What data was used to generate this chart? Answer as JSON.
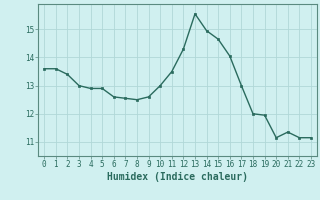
{
  "x": [
    0,
    1,
    2,
    3,
    4,
    5,
    6,
    7,
    8,
    9,
    10,
    11,
    12,
    13,
    14,
    15,
    16,
    17,
    18,
    19,
    20,
    21,
    22,
    23
  ],
  "y": [
    13.6,
    13.6,
    13.4,
    13.0,
    12.9,
    12.9,
    12.6,
    12.55,
    12.5,
    12.6,
    13.0,
    13.5,
    14.3,
    15.55,
    14.95,
    14.65,
    14.05,
    13.0,
    12.0,
    11.95,
    11.15,
    11.35,
    11.15,
    11.15
  ],
  "line_color": "#2a6b5e",
  "marker": "s",
  "marker_size": 2.0,
  "bg_color": "#d0f0f0",
  "grid_color": "#b0d8d8",
  "xlabel": "Humidex (Indice chaleur)",
  "ylim": [
    10.5,
    15.9
  ],
  "xlim": [
    -0.5,
    23.5
  ],
  "yticks": [
    11,
    12,
    13,
    14,
    15
  ],
  "xticks": [
    0,
    1,
    2,
    3,
    4,
    5,
    6,
    7,
    8,
    9,
    10,
    11,
    12,
    13,
    14,
    15,
    16,
    17,
    18,
    19,
    20,
    21,
    22,
    23
  ],
  "tick_color": "#2a6b5e",
  "label_color": "#2a6b5e",
  "spine_color": "#5a8a80",
  "tick_fontsize": 5.5,
  "xlabel_fontsize": 7.0,
  "linewidth": 1.0
}
